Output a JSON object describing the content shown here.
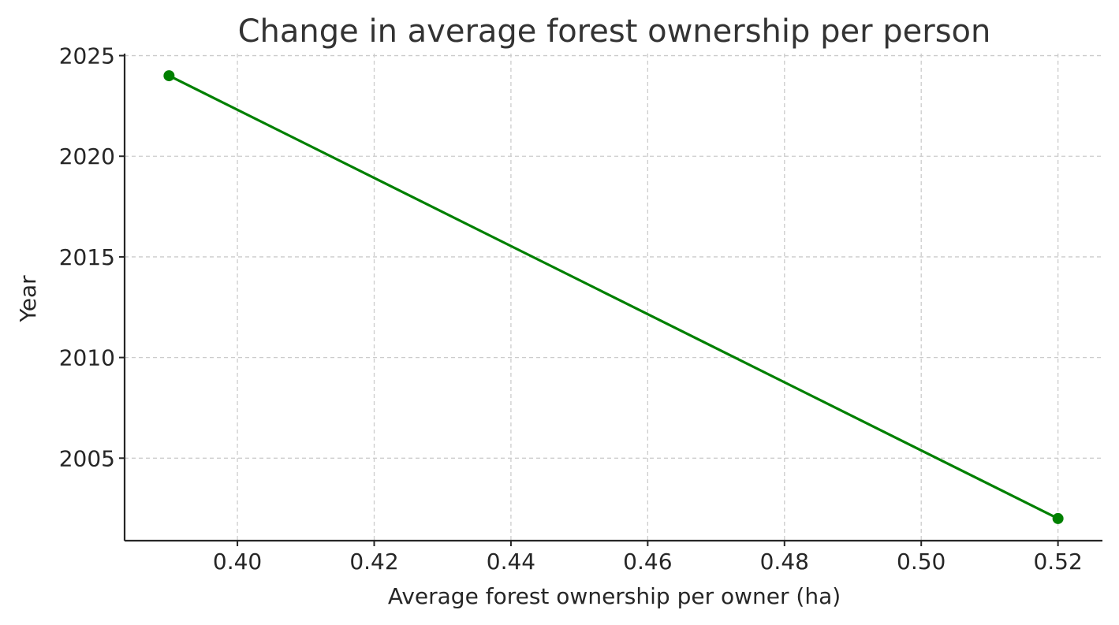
{
  "chart_data": {
    "type": "line",
    "title": "Change in average forest ownership per person",
    "xlabel": "Average forest ownership per owner (ha)",
    "ylabel": "Year",
    "xlim": [
      0.3835,
      0.5265
    ],
    "ylim": [
      2000.9,
      2025.1
    ],
    "x_ticks": [
      0.4,
      0.42,
      0.44,
      0.46,
      0.48,
      0.5,
      0.52
    ],
    "x_tick_labels": [
      "0.40",
      "0.42",
      "0.44",
      "0.46",
      "0.48",
      "0.50",
      "0.52"
    ],
    "y_ticks": [
      2005,
      2010,
      2015,
      2020,
      2025
    ],
    "y_tick_labels": [
      "2005",
      "2010",
      "2015",
      "2020",
      "2025"
    ],
    "grid": true,
    "series": [
      {
        "color": "#008000",
        "marker": "circle",
        "points": [
          {
            "x": 0.39,
            "y": 2024
          },
          {
            "x": 0.52,
            "y": 2002
          }
        ]
      }
    ]
  }
}
